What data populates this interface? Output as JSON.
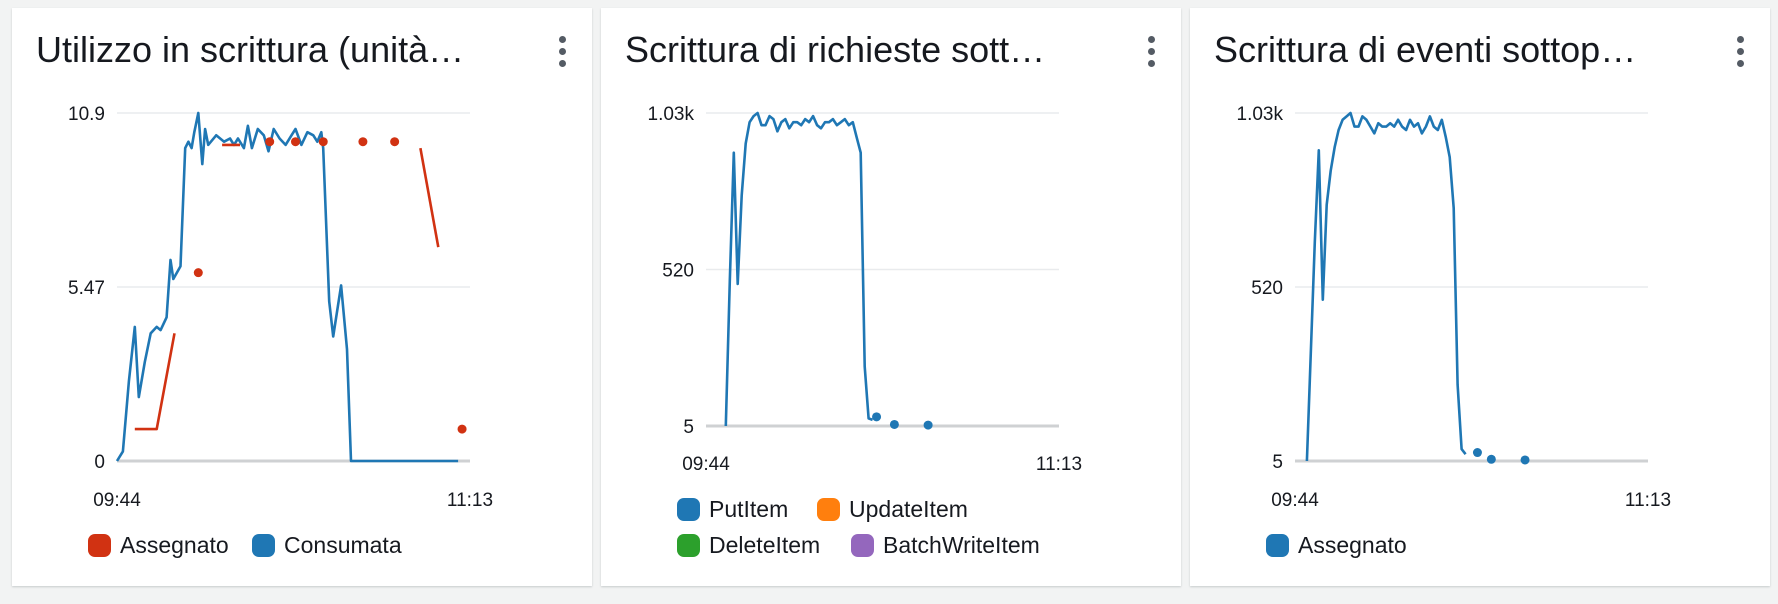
{
  "colors": {
    "red": "#d13212",
    "blue": "#1f77b4",
    "orange": "#ff7f0e",
    "green": "#2ca02c",
    "purple": "#9467bd",
    "grid": "#e9ebed",
    "axis": "#cfd1d3"
  },
  "widgets": [
    {
      "title": "Utilizzo in scrittura (unità…",
      "menu_icon": "more-vertical-icon"
    },
    {
      "title": "Scrittura di richieste sott…",
      "menu_icon": "more-vertical-icon"
    },
    {
      "title": "Scrittura di eventi sottop…",
      "menu_icon": "more-vertical-icon"
    }
  ],
  "chart_data": [
    {
      "type": "line",
      "title": "Utilizzo in scrittura (unità…",
      "xlim": [
        0,
        89
      ],
      "ylim": [
        0,
        10.9
      ],
      "yticks": [
        "10.9",
        "5.47",
        "0"
      ],
      "xticks": [
        "09:44",
        "11:13"
      ],
      "legend_position": "bottom-left",
      "grid": true,
      "series": [
        {
          "name": "Consumata",
          "color": "#1f77b4",
          "points": [
            [
              0,
              0
            ],
            [
              1.5,
              0.3
            ],
            [
              3,
              2.5
            ],
            [
              4.5,
              4.2
            ],
            [
              5.5,
              2
            ],
            [
              7,
              3.1
            ],
            [
              8.5,
              4
            ],
            [
              10,
              4.2
            ],
            [
              11,
              4.1
            ],
            [
              12.5,
              4.5
            ],
            [
              13.5,
              6.3
            ],
            [
              14.2,
              5.7
            ],
            [
              16,
              6.1
            ],
            [
              17.2,
              9.8
            ],
            [
              18,
              10
            ],
            [
              18.8,
              9.8
            ],
            [
              19.5,
              10.3
            ],
            [
              20.5,
              10.9
            ],
            [
              21.5,
              9.3
            ],
            [
              22.2,
              10.4
            ],
            [
              23,
              9.9
            ],
            [
              25,
              10.2
            ],
            [
              27,
              10
            ],
            [
              28.5,
              10.1
            ],
            [
              29.5,
              9.9
            ],
            [
              30.5,
              10.1
            ],
            [
              32,
              9.8
            ],
            [
              33,
              10.5
            ],
            [
              34,
              9.8
            ],
            [
              35.5,
              10.4
            ],
            [
              37,
              10.2
            ],
            [
              38.2,
              9.7
            ],
            [
              39.5,
              10.4
            ],
            [
              41,
              10.1
            ],
            [
              42.5,
              9.9
            ],
            [
              44,
              10.2
            ],
            [
              45,
              10.4
            ],
            [
              46.5,
              9.9
            ],
            [
              48,
              10.3
            ],
            [
              49.5,
              10.2
            ],
            [
              50.5,
              10
            ],
            [
              51.5,
              10.3
            ],
            [
              52,
              9.8
            ],
            [
              53.5,
              5
            ],
            [
              54.5,
              3.9
            ],
            [
              56.5,
              5.5
            ],
            [
              58,
              3.5
            ],
            [
              59,
              0
            ],
            [
              66,
              0
            ],
            [
              73,
              0
            ],
            [
              80,
              0
            ],
            [
              86,
              0
            ]
          ]
        },
        {
          "name": "Assegnato",
          "color": "#d13212",
          "segments": [
            [
              [
                4.5,
                1
              ],
              [
                10,
                1
              ],
              [
                14.5,
                4
              ]
            ],
            [
              [
                26.5,
                9.9
              ],
              [
                31,
                9.9
              ]
            ],
            [
              [
                76.5,
                9.8
              ],
              [
                81,
                6.7
              ]
            ]
          ],
          "dots": [
            [
              20.5,
              5.9
            ],
            [
              38.5,
              10
            ],
            [
              45,
              10
            ],
            [
              52,
              10
            ],
            [
              62,
              10
            ],
            [
              70,
              10
            ],
            [
              87,
              1
            ]
          ]
        }
      ],
      "legend": [
        {
          "label": "Assegnato",
          "color": "#d13212"
        },
        {
          "label": "Consumata",
          "color": "#1f77b4"
        }
      ]
    },
    {
      "type": "line",
      "title": "Scrittura di richieste sott…",
      "xlim": [
        0,
        89
      ],
      "ylim": [
        5,
        1030
      ],
      "yticks": [
        "1.03k",
        "520",
        "5"
      ],
      "xticks": [
        "09:44",
        "11:13"
      ],
      "legend_position": "bottom-left",
      "grid": true,
      "series": [
        {
          "name": "PutItem",
          "color": "#1f77b4",
          "points": [
            [
              5,
              5
            ],
            [
              6,
              480
            ],
            [
              7,
              900
            ],
            [
              8,
              470
            ],
            [
              9,
              760
            ],
            [
              10,
              930
            ],
            [
              11,
              1000
            ],
            [
              12,
              1020
            ],
            [
              13,
              1030
            ],
            [
              14,
              990
            ],
            [
              15,
              990
            ],
            [
              16,
              1020
            ],
            [
              17,
              1010
            ],
            [
              18,
              970
            ],
            [
              19,
              1000
            ],
            [
              20,
              1010
            ],
            [
              21,
              980
            ],
            [
              22,
              1000
            ],
            [
              23,
              1000
            ],
            [
              24,
              990
            ],
            [
              25,
              1010
            ],
            [
              26,
              1000
            ],
            [
              27,
              1020
            ],
            [
              28,
              990
            ],
            [
              29,
              980
            ],
            [
              30,
              1000
            ],
            [
              31,
              1000
            ],
            [
              32,
              1010
            ],
            [
              33,
              990
            ],
            [
              34,
              1000
            ],
            [
              35,
              1010
            ],
            [
              36,
              990
            ],
            [
              37,
              1000
            ],
            [
              38,
              950
            ],
            [
              39,
              900
            ],
            [
              40,
              200
            ],
            [
              41,
              30
            ],
            [
              42,
              25
            ]
          ],
          "dots": [
            [
              43,
              35
            ],
            [
              47.5,
              10
            ],
            [
              56,
              8
            ]
          ]
        }
      ],
      "legend": [
        {
          "label": "PutItem",
          "color": "#1f77b4"
        },
        {
          "label": "UpdateItem",
          "color": "#ff7f0e"
        },
        {
          "label": "DeleteItem",
          "color": "#2ca02c"
        },
        {
          "label": "BatchWriteItem",
          "color": "#9467bd"
        }
      ]
    },
    {
      "type": "line",
      "title": "Scrittura di eventi sottop…",
      "xlim": [
        0,
        89
      ],
      "ylim": [
        5,
        1030
      ],
      "yticks": [
        "1.03k",
        "520",
        "5"
      ],
      "xticks": [
        "09:44",
        "11:13"
      ],
      "legend_position": "bottom-left",
      "grid": true,
      "series": [
        {
          "name": "Assegnato",
          "color": "#1f77b4",
          "points": [
            [
              3,
              5
            ],
            [
              5,
              650
            ],
            [
              6,
              920
            ],
            [
              7,
              480
            ],
            [
              8,
              760
            ],
            [
              9,
              860
            ],
            [
              10,
              930
            ],
            [
              11,
              980
            ],
            [
              12,
              1010
            ],
            [
              13,
              1020
            ],
            [
              14,
              1030
            ],
            [
              15,
              990
            ],
            [
              16,
              990
            ],
            [
              17,
              1020
            ],
            [
              18,
              1010
            ],
            [
              19,
              990
            ],
            [
              20,
              970
            ],
            [
              21,
              1000
            ],
            [
              22,
              990
            ],
            [
              23,
              990
            ],
            [
              24,
              1000
            ],
            [
              25,
              990
            ],
            [
              26,
              1010
            ],
            [
              27,
              990
            ],
            [
              28,
              980
            ],
            [
              29,
              1010
            ],
            [
              30,
              990
            ],
            [
              31,
              1000
            ],
            [
              32,
              970
            ],
            [
              33,
              990
            ],
            [
              34,
              1020
            ],
            [
              35,
              990
            ],
            [
              36,
              980
            ],
            [
              37,
              1010
            ],
            [
              38,
              960
            ],
            [
              39,
              900
            ],
            [
              40,
              750
            ],
            [
              41,
              230
            ],
            [
              42,
              40
            ],
            [
              43,
              25
            ]
          ],
          "dots": [
            [
              46,
              30
            ],
            [
              49.5,
              10
            ],
            [
              58,
              8
            ]
          ]
        }
      ],
      "legend": [
        {
          "label": "Assegnato",
          "color": "#1f77b4"
        }
      ]
    }
  ]
}
